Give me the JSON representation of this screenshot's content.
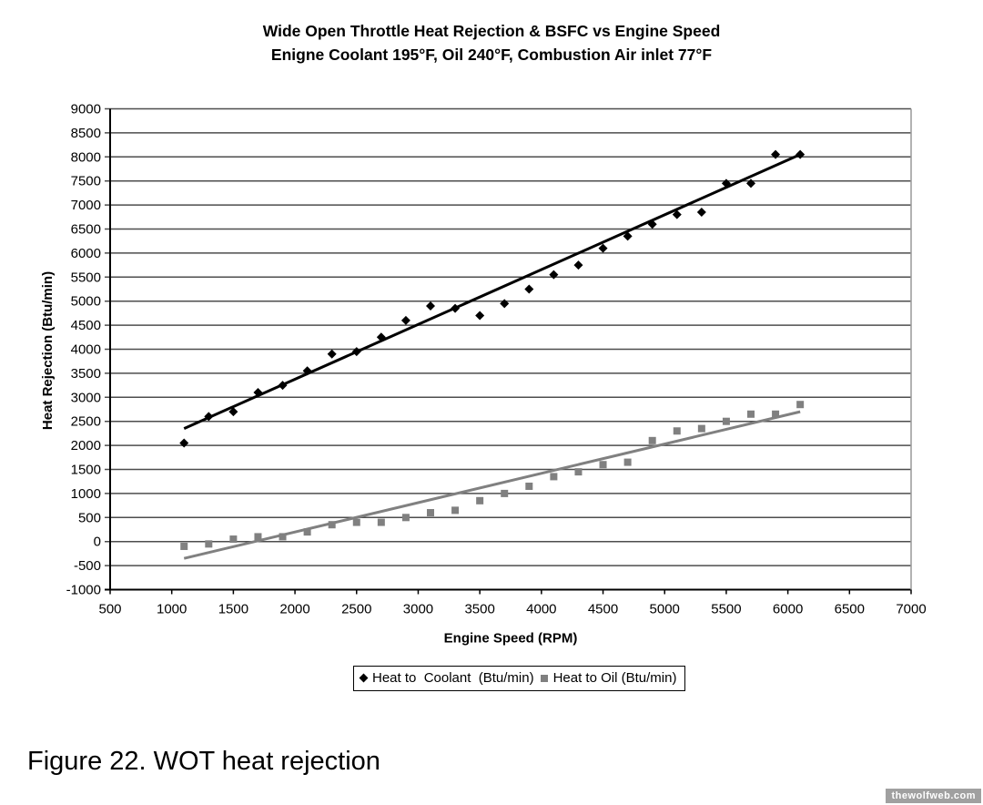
{
  "page": {
    "caption": "Figure 22. WOT heat rejection",
    "watermark": "thewolfweb.com"
  },
  "colors": {
    "coolant": "#000000",
    "oil": "#808080",
    "gridline": "#4d4d4d",
    "axis": "#000000",
    "plot_border": "#999999",
    "watermark_bg": "#a0a0a0"
  },
  "chart_data": {
    "type": "scatter",
    "title": "Wide Open Throttle Heat Rejection & BSFC vs Engine Speed",
    "subtitle": "Enigne Coolant 195°F, Oil 240°F, Combustion Air inlet 77°F",
    "xlabel": "Engine Speed (RPM)",
    "ylabel": "Heat Rejection (Btu/min)",
    "xlim": [
      500,
      7000
    ],
    "ylim": [
      -1000,
      9000
    ],
    "xticks": [
      500,
      1000,
      1500,
      2000,
      2500,
      3000,
      3500,
      4000,
      4500,
      5000,
      5500,
      6000,
      6500,
      7000
    ],
    "yticks": [
      -1000,
      -500,
      0,
      500,
      1000,
      1500,
      2000,
      2500,
      3000,
      3500,
      4000,
      4500,
      5000,
      5500,
      6000,
      6500,
      7000,
      7500,
      8000,
      8500,
      9000
    ],
    "grid": "horizontal",
    "legend_position": "bottom",
    "x": [
      1100,
      1300,
      1500,
      1700,
      1900,
      2100,
      2300,
      2500,
      2700,
      2900,
      3100,
      3300,
      3500,
      3700,
      3900,
      4100,
      4300,
      4500,
      4700,
      4900,
      5100,
      5300,
      5500,
      5700,
      5900,
      6100
    ],
    "series": [
      {
        "name": "Heat to  Coolant  (Btu/min)",
        "marker": "diamond",
        "color": "#000000",
        "values": [
          2050,
          2600,
          2700,
          3100,
          3250,
          3550,
          3900,
          3950,
          4250,
          4600,
          4900,
          4850,
          4700,
          4950,
          5250,
          5550,
          5750,
          6100,
          6350,
          6600,
          6800,
          6850,
          7450,
          7450,
          8050,
          8050
        ],
        "trendline": {
          "x1": 1100,
          "y1": 2350,
          "x2": 6100,
          "y2": 8050
        }
      },
      {
        "name": "Heat to Oil (Btu/min)",
        "marker": "square",
        "color": "#808080",
        "values": [
          -100,
          -50,
          50,
          100,
          100,
          200,
          350,
          400,
          400,
          500,
          600,
          650,
          850,
          1000,
          1150,
          1350,
          1450,
          1600,
          1650,
          2100,
          2300,
          2350,
          2500,
          2650,
          2650,
          2850
        ],
        "trendline": {
          "x1": 1100,
          "y1": -350,
          "x2": 6100,
          "y2": 2700
        }
      }
    ]
  }
}
